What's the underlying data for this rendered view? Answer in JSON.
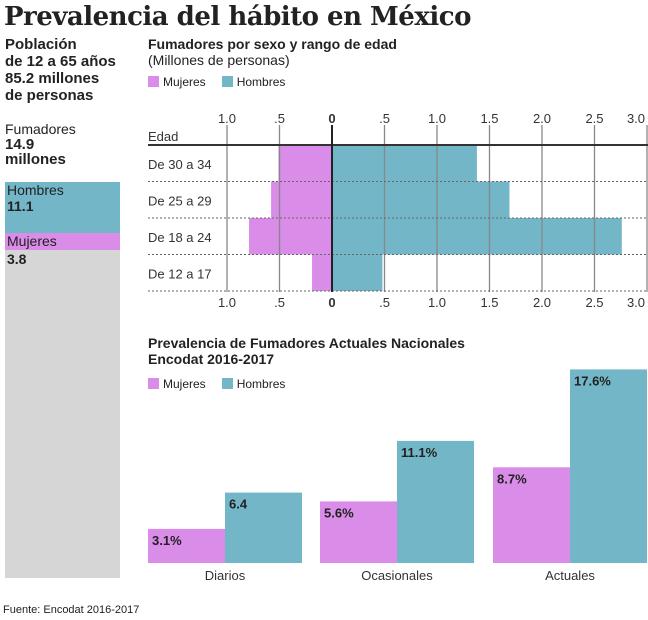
{
  "title": "Prevalencia del hábito en México",
  "population": {
    "line1": "Población",
    "line2": "de 12 a 65 años",
    "line3": "85.2 millones",
    "line4": "de personas"
  },
  "smokers": {
    "label": "Fumadores",
    "value": "14.9",
    "unit": "millones",
    "men_label": "Hombres",
    "men_value": "11.1",
    "women_label": "Mujeres",
    "women_value": "3.8"
  },
  "colors": {
    "mujeres": "#d98ce8",
    "hombres": "#72b6c8",
    "gray": "#d6d6d6"
  },
  "chart_data": [
    {
      "type": "bar",
      "orientation": "horizontal-pyramid",
      "title": "Fumadores por sexo y rango de edad",
      "subtitle": "(Millones de personas)",
      "ylabel": "Edad",
      "categories": [
        "De 30 a 34",
        "De 25 a 29",
        "De 18 a 24",
        "De 12 a 17"
      ],
      "xticks_left": [
        "1.0",
        ".5"
      ],
      "xticks_right": [
        "0",
        ".5",
        "1.0",
        "1.5",
        "2.0",
        "2.5",
        "3.0"
      ],
      "xlim_left": [
        0,
        1.0
      ],
      "xlim_right": [
        0,
        3.0
      ],
      "series": [
        {
          "name": "Mujeres",
          "values": [
            0.51,
            0.58,
            0.79,
            0.19
          ]
        },
        {
          "name": "Hombres",
          "values": [
            1.38,
            1.69,
            2.76,
            0.48
          ]
        }
      ],
      "legend": "top-left",
      "grid": true
    },
    {
      "type": "bar",
      "title": "Prevalencia de Fumadores Actuales Nacionales",
      "subtitle": "Encodat 2016-2017",
      "categories": [
        "Diarios",
        "Ocasionales",
        "Actuales"
      ],
      "series": [
        {
          "name": "Mujeres",
          "values": [
            3.1,
            5.6,
            8.7
          ],
          "labels": [
            "3.1%",
            "5.6%",
            "8.7%"
          ]
        },
        {
          "name": "Hombres",
          "values": [
            6.4,
            11.1,
            17.6
          ],
          "labels": [
            "6.4",
            "11.1%",
            "17.6%"
          ]
        }
      ],
      "legend": "top-left",
      "grid": false
    }
  ],
  "source": "Fuente: Encodat 2016-2017"
}
